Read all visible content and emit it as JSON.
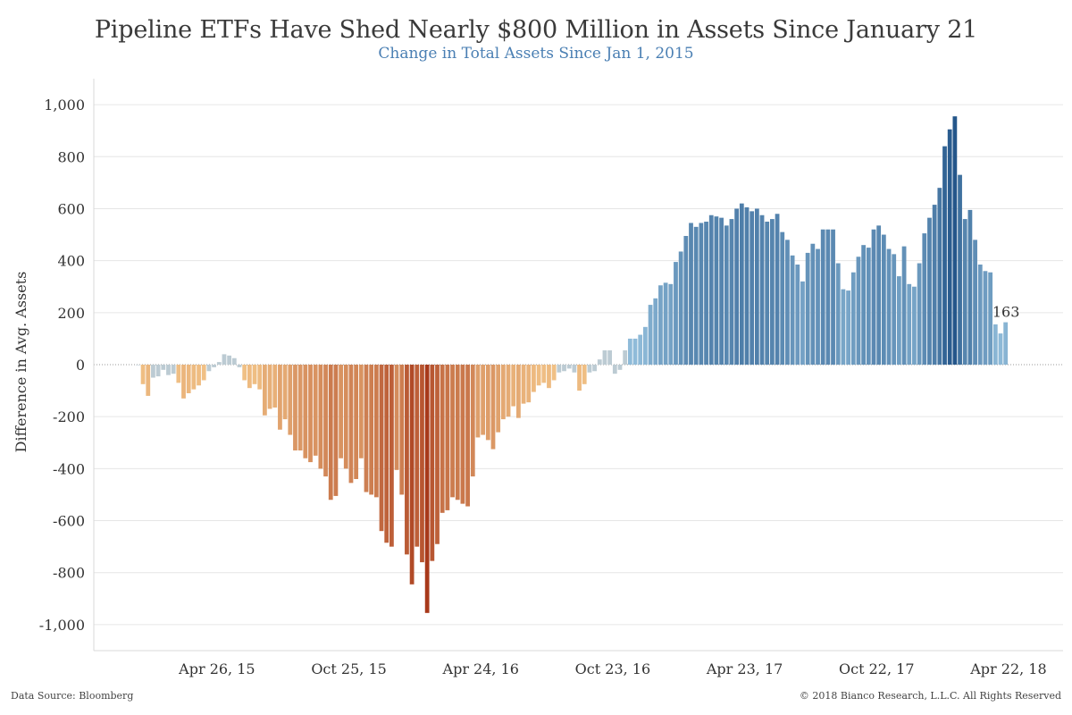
{
  "title": "Pipeline ETFs Have Shed Nearly $800 Million in Assets Since January 21",
  "subtitle": "Change in Total Assets Since Jan 1, 2015",
  "footer": {
    "source": "Data Source: Bloomberg",
    "copyright": "© 2018 Bianco Research, L.L.C. All Rights Reserved"
  },
  "colors": {
    "negative_light": "#f5c98c",
    "negative_dark": "#a8391a",
    "neutral": "#bccbd3",
    "positive_light": "#9cc7e2",
    "positive_dark": "#24568a",
    "gridline": "#e6e6e6"
  },
  "chart_data": {
    "type": "bar",
    "ylabel": "Difference in Avg. Assets",
    "ylim": [
      -1100,
      1100
    ],
    "yticks": [
      1000,
      800,
      600,
      400,
      200,
      0,
      -200,
      -400,
      -600,
      -800,
      -1000
    ],
    "ytick_labels": [
      "1,000",
      "800",
      "600",
      "400",
      "200",
      "0",
      "-200",
      "-400",
      "-600",
      "-800",
      "-1,000"
    ],
    "xtick_labels": [
      "Apr 26, 15",
      "Oct 25, 15",
      "Apr 24, 16",
      "Oct 23, 16",
      "Apr 23, 17",
      "Oct 22, 17",
      "Apr 22, 18"
    ],
    "xtick_index": [
      16,
      42,
      68,
      94,
      120,
      146,
      172
    ],
    "grid": true,
    "last_value_label": "163",
    "values": [
      -2,
      -75,
      -120,
      -50,
      -45,
      -20,
      -40,
      -35,
      -70,
      -130,
      -110,
      -95,
      -80,
      -60,
      -25,
      -10,
      10,
      40,
      35,
      25,
      -10,
      -60,
      -90,
      -75,
      -95,
      -195,
      -170,
      -165,
      -250,
      -210,
      -270,
      -330,
      -330,
      -360,
      -375,
      -350,
      -400,
      -430,
      -520,
      -505,
      -360,
      -400,
      -455,
      -440,
      -360,
      -490,
      -500,
      -510,
      -640,
      -685,
      -700,
      -405,
      -500,
      -730,
      -845,
      -700,
      -760,
      -955,
      -755,
      -690,
      -570,
      -560,
      -510,
      -520,
      -535,
      -545,
      -430,
      -280,
      -270,
      -290,
      -325,
      -260,
      -210,
      -200,
      -160,
      -205,
      -150,
      -145,
      -105,
      -80,
      -70,
      -90,
      -60,
      -30,
      -25,
      -15,
      -30,
      -100,
      -75,
      -30,
      -25,
      20,
      55,
      55,
      -35,
      -20,
      55,
      100,
      100,
      115,
      145,
      230,
      255,
      305,
      315,
      310,
      395,
      435,
      495,
      545,
      530,
      545,
      550,
      575,
      570,
      565,
      535,
      560,
      600,
      620,
      605,
      590,
      600,
      575,
      550,
      560,
      580,
      510,
      480,
      420,
      385,
      320,
      430,
      465,
      445,
      520,
      520,
      520,
      390,
      290,
      285,
      355,
      415,
      460,
      450,
      520,
      535,
      500,
      445,
      425,
      340,
      455,
      310,
      300,
      390,
      505,
      565,
      615,
      680,
      840,
      905,
      955,
      730,
      560,
      595,
      480,
      385,
      360,
      355,
      155,
      120,
      163
    ]
  }
}
